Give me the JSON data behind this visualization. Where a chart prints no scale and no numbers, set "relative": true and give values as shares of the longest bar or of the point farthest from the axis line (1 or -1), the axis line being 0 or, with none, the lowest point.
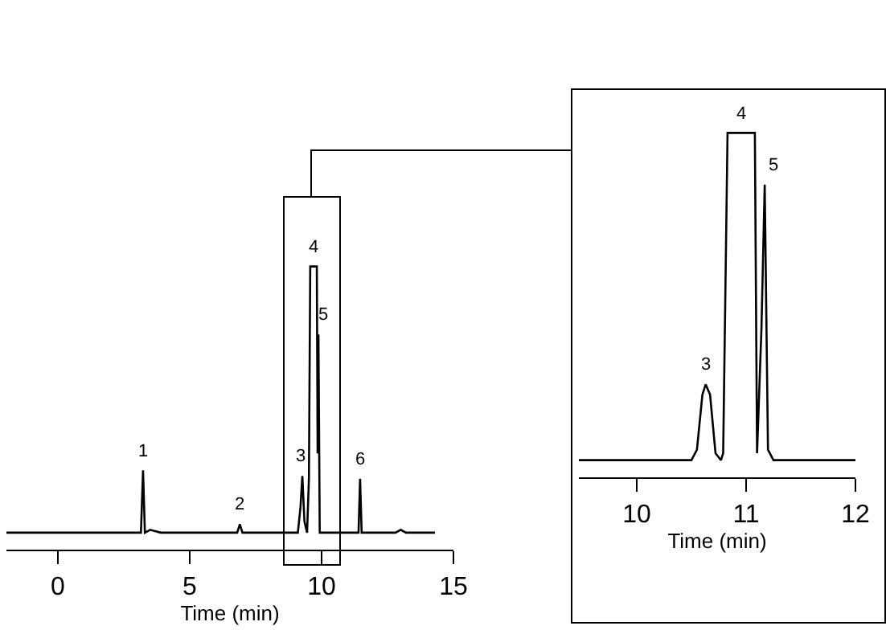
{
  "chart_data": [
    {
      "type": "line",
      "xlabel": "Time (min)",
      "relative": true,
      "xlim": [
        -1.95,
        15
      ],
      "xticks": [
        0,
        5,
        10,
        15
      ],
      "tick_labels": "x",
      "grid": false,
      "marker": "none",
      "line_style": "solid",
      "x": [
        -1.95,
        3.0,
        3.15,
        3.23,
        3.3,
        3.5,
        3.9,
        6.8,
        6.9,
        7.0,
        9.1,
        9.2,
        9.27,
        9.35,
        9.45,
        9.52,
        9.57,
        9.82,
        9.85,
        9.88,
        9.93,
        11.4,
        11.46,
        11.52,
        12.8,
        13.0,
        13.2,
        14.3
      ],
      "series": [
        {
          "color": "#000000",
          "values": [
            0.06,
            0.06,
            0.06,
            0.28,
            0.06,
            0.07,
            0.06,
            0.06,
            0.09,
            0.06,
            0.06,
            0.15,
            0.26,
            0.1,
            0.06,
            0.25,
            1,
            1,
            0.34,
            0.76,
            0.06,
            0.06,
            0.25,
            0.06,
            0.06,
            0.07,
            0.06,
            0.06
          ]
        }
      ],
      "annotations": [
        {
          "text": "1",
          "x": 3.23,
          "y": 0.28
        },
        {
          "text": "2",
          "x": 6.9,
          "y": 0.09
        },
        {
          "text": "3",
          "x": 9.2,
          "y": 0.26
        },
        {
          "text": "4",
          "x": 9.7,
          "y": 1
        },
        {
          "text": "5",
          "x": 10.05,
          "y": 0.76
        },
        {
          "text": "6",
          "x": 11.46,
          "y": 0.25
        }
      ]
    },
    {
      "type": "line",
      "xlabel": "Time (min)",
      "relative": true,
      "xlim": [
        9.47,
        12
      ],
      "xticks": [
        10,
        11,
        12
      ],
      "tick_labels": "x",
      "grid": false,
      "marker": "none",
      "line_style": "solid",
      "x": [
        9.47,
        10.5,
        10.55,
        10.6,
        10.63,
        10.67,
        10.72,
        10.77,
        10.79,
        10.83,
        11.08,
        11.1,
        11.14,
        11.17,
        11.2,
        11.25,
        12.0
      ],
      "series": [
        {
          "color": "#000000",
          "values": [
            0.05,
            0.05,
            0.08,
            0.24,
            0.27,
            0.24,
            0.07,
            0.05,
            0.07,
            1,
            1,
            0.07,
            0.43,
            0.85,
            0.08,
            0.05,
            0.05
          ]
        }
      ],
      "annotations": [
        {
          "text": "3",
          "x": 10.63,
          "y": 0.27
        },
        {
          "text": "4",
          "x": 10.95,
          "y": 1
        },
        {
          "text": "5",
          "x": 11.25,
          "y": 0.85
        }
      ]
    }
  ]
}
